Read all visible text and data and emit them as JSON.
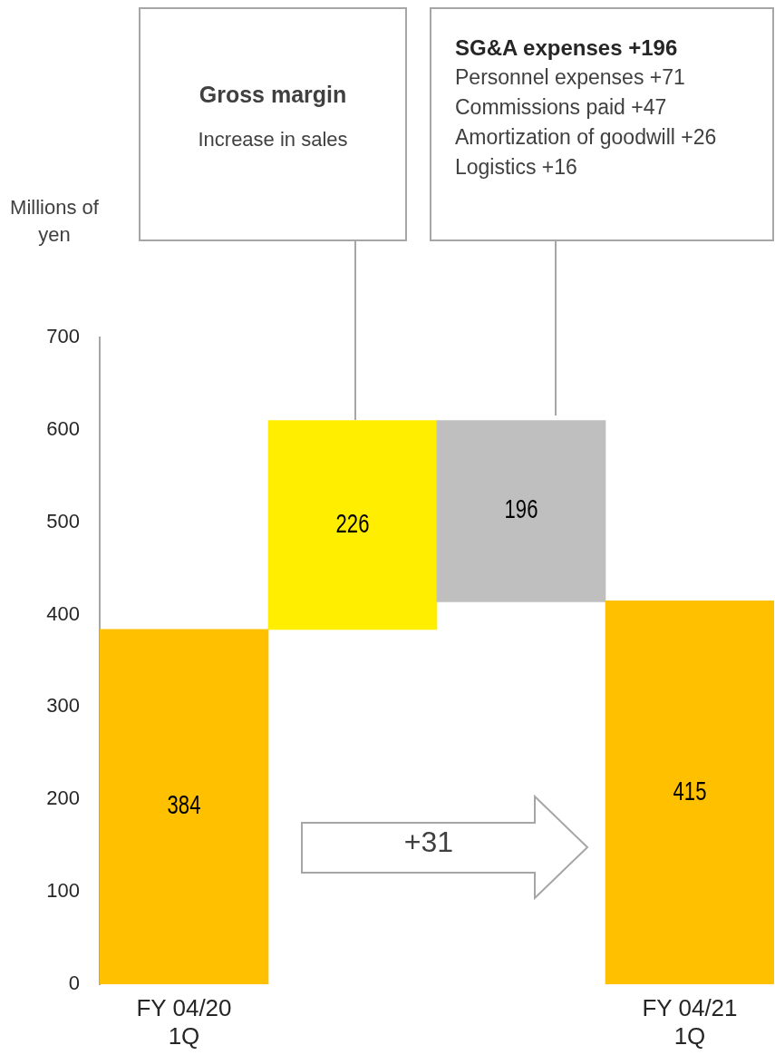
{
  "chart_data": {
    "type": "bar",
    "ylabel": "Millions of yen",
    "categories": [
      "FY 04/20\n1Q",
      null,
      null,
      "FY 04/21\n1Q"
    ],
    "values": [
      384,
      226,
      -196,
      415
    ],
    "base": [
      0,
      384,
      610,
      0
    ],
    "colors": [
      "#ffc000",
      "#ffee00",
      "#bfbfbf",
      "#ffc000"
    ],
    "value_labels": [
      "384",
      "226",
      "196",
      "415"
    ],
    "ylim": [
      0,
      700
    ],
    "yticks": [
      0,
      100,
      200,
      300,
      400,
      500,
      600,
      700
    ],
    "grid": false,
    "legend": false,
    "annotations": [
      "Gross margin",
      "Increase in sales",
      "SG&A expenses +196",
      "Personnel expenses +71",
      "Commissions paid +47",
      "Amortization of goodwill +26",
      "Logistics +16",
      "+31"
    ]
  }
}
